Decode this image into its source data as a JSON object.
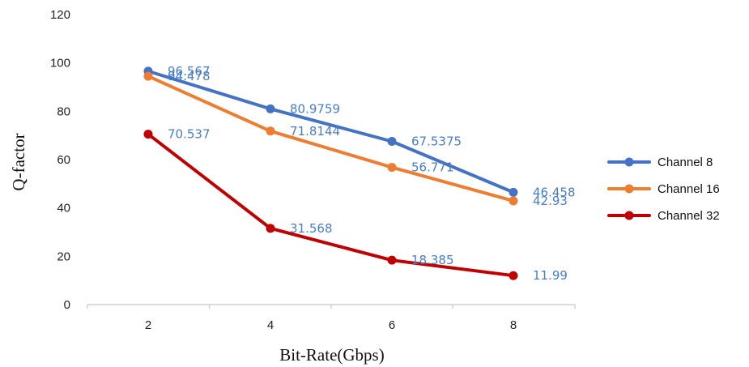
{
  "chart_data": {
    "type": "line",
    "title": "",
    "xlabel": "Bit-Rate(Gbps)",
    "ylabel": "Q-factor",
    "x": [
      2,
      4,
      6,
      8
    ],
    "x_tick_labels": [
      "2",
      "4",
      "6",
      "8"
    ],
    "ylim": [
      0,
      120
    ],
    "y_ticks": [
      0,
      20,
      40,
      60,
      80,
      100,
      120
    ],
    "grid": false,
    "legend_position": "right",
    "series": [
      {
        "name": "Channel 8",
        "color": "#4472C4",
        "values": [
          96.567,
          80.9759,
          67.5375,
          46.458
        ],
        "labels": [
          "96.567",
          "80.9759",
          "67.5375",
          "46.458"
        ]
      },
      {
        "name": "Channel 16",
        "color": "#ED7D31",
        "values": [
          94.478,
          71.8144,
          56.771,
          42.93
        ],
        "labels": [
          "94.478",
          "71.8144",
          "56.771",
          "42.93"
        ]
      },
      {
        "name": "Channel 32",
        "color": "#C00000",
        "values": [
          70.537,
          31.568,
          18.385,
          11.99
        ],
        "labels": [
          "70.537",
          "31.568",
          "18.385",
          "11.99"
        ]
      }
    ],
    "data_label_color": "#4A7DC8"
  }
}
